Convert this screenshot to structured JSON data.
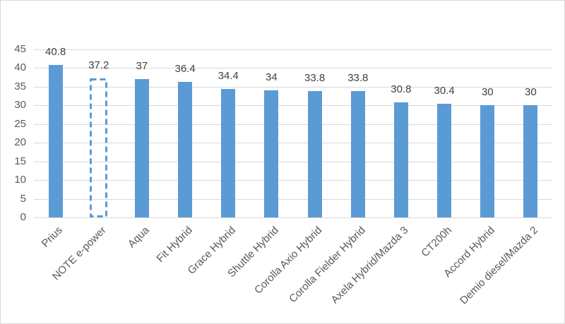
{
  "chart_data": {
    "type": "bar",
    "title": "",
    "xlabel": "",
    "ylabel": "",
    "categories": [
      "Prius",
      "NOTE e-power",
      "Aqua",
      "Fit Hybrid",
      "Grace Hybrid",
      "Shuttle Hybrid",
      "Corolla Axio Hybrid",
      "Corolla Fielder Hybrid",
      "Axela Hybrid/Mazda 3",
      "CT200h",
      "Accord Hybrid",
      "Demio diesel/Mazda 2"
    ],
    "values": [
      40.8,
      37.2,
      37,
      36.4,
      34.4,
      34,
      33.8,
      33.8,
      30.8,
      30.4,
      30,
      30
    ],
    "value_labels": [
      "40.8",
      "37.2",
      "37",
      "36.4",
      "34.4",
      "34",
      "33.8",
      "33.8",
      "30.8",
      "30.4",
      "30",
      "30"
    ],
    "highlight_index": 1,
    "highlight_style": "dashed-outline",
    "ylim": [
      0,
      45
    ],
    "ytick_step": 5,
    "ytick_labels": [
      "0",
      "5",
      "10",
      "15",
      "20",
      "25",
      "30",
      "35",
      "40",
      "45"
    ],
    "grid": "horizontal",
    "legend": "none",
    "colors": {
      "bar": "#5B9BD5",
      "gridline": "#D9D9D9",
      "tick_text": "#595959",
      "value_text": "#404040",
      "frame_border": "#D9D9D9",
      "background": "#FFFFFF"
    }
  }
}
